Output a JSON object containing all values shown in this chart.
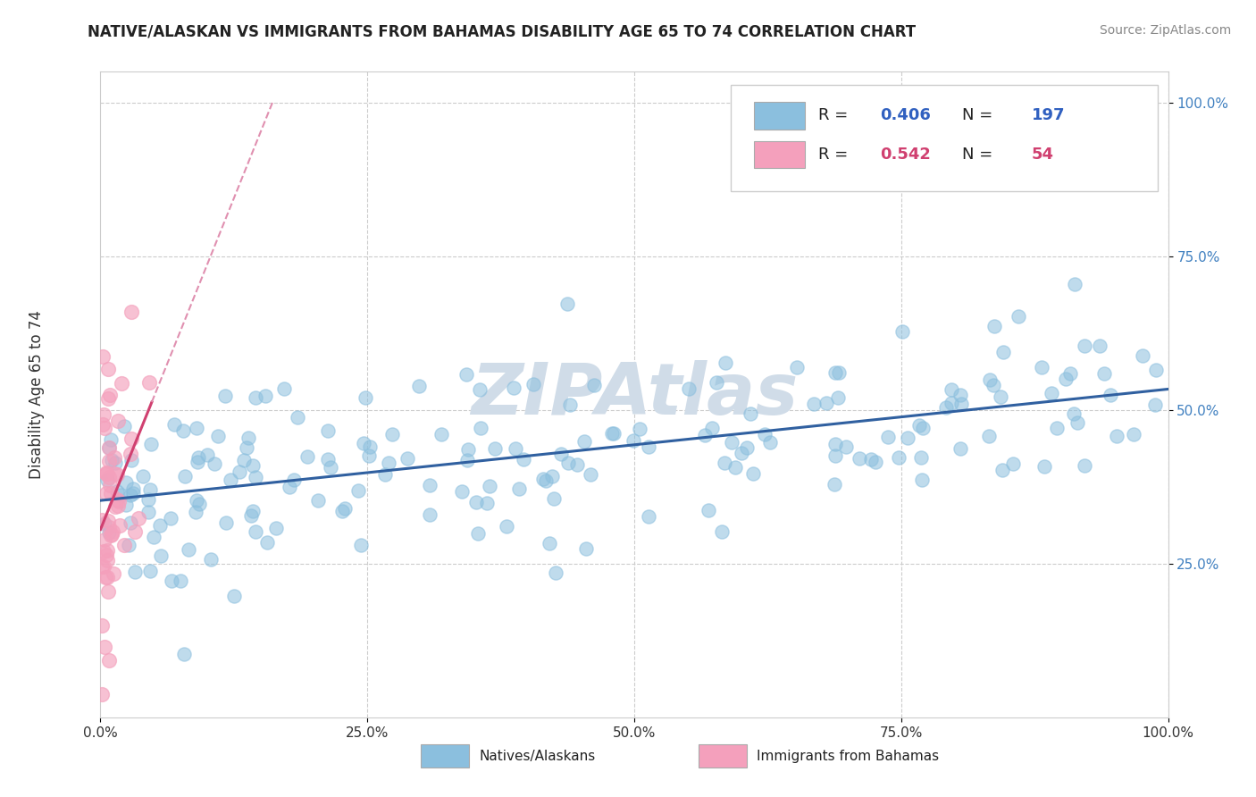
{
  "title": "NATIVE/ALASKAN VS IMMIGRANTS FROM BAHAMAS DISABILITY AGE 65 TO 74 CORRELATION CHART",
  "source": "Source: ZipAtlas.com",
  "ylabel": "Disability Age 65 to 74",
  "blue_R": 0.406,
  "blue_N": 197,
  "pink_R": 0.542,
  "pink_N": 54,
  "blue_color": "#8bbfde",
  "pink_color": "#f4a0bc",
  "blue_line_color": "#3060a0",
  "pink_line_color": "#d04070",
  "pink_line_dashed_color": "#e090b0",
  "watermark_color": "#d0dce8",
  "text_color_blue": "#3060c0",
  "text_color_pink": "#d04070",
  "ytick_color": "#4080c0",
  "xlim": [
    0,
    1
  ],
  "ylim": [
    0,
    1.05
  ],
  "xtick_vals": [
    0,
    0.25,
    0.5,
    0.75,
    1.0
  ],
  "xtick_labels": [
    "0.0%",
    "25.0%",
    "50.0%",
    "75.0%",
    "100.0%"
  ],
  "ytick_vals": [
    0.25,
    0.5,
    0.75,
    1.0
  ],
  "ytick_labels": [
    "25.0%",
    "50.0%",
    "75.0%",
    "100.0%"
  ]
}
